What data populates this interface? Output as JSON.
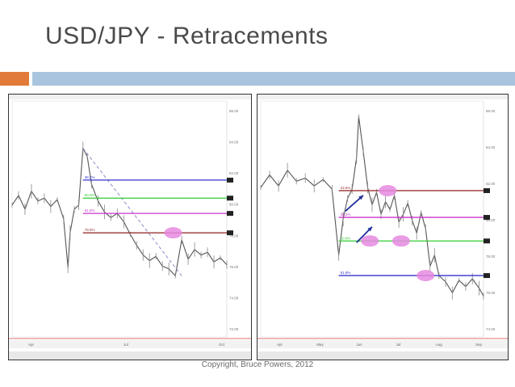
{
  "slide": {
    "title": "USD/JPY - Retracements",
    "copyright": "Copyright, Bruce Powers, 2012",
    "colors": {
      "title": "#4a4a4a",
      "accent_orange": "#e07b39",
      "accent_blue": "#a9c4de"
    }
  },
  "chart_data": [
    {
      "type": "line",
      "title": "",
      "xlabel": "",
      "ylabel": "",
      "x_tick_labels": [
        "Apr",
        "Jul",
        "Oct"
      ],
      "y_tick_labels": [
        "86.00",
        "84.00",
        "82.00",
        "80.00",
        "78.00",
        "76.00",
        "74.00",
        "72.00"
      ],
      "ylim": [
        71,
        88
      ],
      "series": [
        {
          "color": "#555555",
          "points": [
            [
              0.0,
              80.5
            ],
            [
              0.03,
              81.2
            ],
            [
              0.06,
              80.2
            ],
            [
              0.09,
              81.5
            ],
            [
              0.12,
              80.8
            ],
            [
              0.15,
              81.0
            ],
            [
              0.18,
              80.4
            ],
            [
              0.21,
              80.9
            ],
            [
              0.24,
              79.5
            ],
            [
              0.26,
              76.0
            ],
            [
              0.27,
              78.5
            ],
            [
              0.29,
              80.2
            ],
            [
              0.31,
              80.5
            ],
            [
              0.33,
              84.6
            ],
            [
              0.35,
              84.0
            ],
            [
              0.37,
              82.0
            ],
            [
              0.4,
              80.8
            ],
            [
              0.43,
              80.0
            ],
            [
              0.46,
              79.6
            ],
            [
              0.49,
              79.9
            ],
            [
              0.52,
              79.3
            ],
            [
              0.55,
              78.4
            ],
            [
              0.58,
              77.6
            ],
            [
              0.61,
              76.9
            ],
            [
              0.64,
              76.5
            ],
            [
              0.67,
              76.8
            ],
            [
              0.7,
              76.1
            ],
            [
              0.73,
              75.9
            ],
            [
              0.76,
              75.4
            ],
            [
              0.79,
              78.0
            ],
            [
              0.82,
              76.6
            ],
            [
              0.85,
              77.3
            ],
            [
              0.88,
              76.9
            ],
            [
              0.91,
              77.1
            ],
            [
              0.94,
              76.4
            ],
            [
              0.97,
              76.7
            ],
            [
              1.0,
              76.2
            ]
          ]
        }
      ],
      "trendline": {
        "from": [
          0.33,
          84.6
        ],
        "to": [
          0.79,
          75.4
        ],
        "color": "#8a8ac8"
      },
      "levels": [
        {
          "label": "38.2%",
          "value": 82.3,
          "color": "#3333cc"
        },
        {
          "label": "50.0%",
          "value": 81.0,
          "color": "#33cc33"
        },
        {
          "label": "61.8%",
          "value": 79.9,
          "color": "#cc33cc"
        },
        {
          "label": "78.6%",
          "value": 78.5,
          "color": "#993333"
        }
      ],
      "highlights": [
        {
          "x": 0.75,
          "y": 78.5,
          "color": "#e68ae0"
        }
      ],
      "arrows": []
    },
    {
      "type": "line",
      "title": "",
      "xlabel": "",
      "ylabel": "",
      "x_tick_labels": [
        "Apr",
        "May",
        "Jun",
        "Jul",
        "Aug",
        "Sep"
      ],
      "y_tick_labels": [
        "86.00",
        "84.00",
        "82.00",
        "80.00",
        "78.00",
        "76.00",
        "74.00"
      ],
      "ylim": [
        73,
        88
      ],
      "series": [
        {
          "color": "#555555",
          "points": [
            [
              0.0,
              82.5
            ],
            [
              0.04,
              83.3
            ],
            [
              0.08,
              82.6
            ],
            [
              0.12,
              83.6
            ],
            [
              0.16,
              82.9
            ],
            [
              0.2,
              83.1
            ],
            [
              0.24,
              82.6
            ],
            [
              0.28,
              83.0
            ],
            [
              0.32,
              82.4
            ],
            [
              0.35,
              78.2
            ],
            [
              0.37,
              80.5
            ],
            [
              0.39,
              81.8
            ],
            [
              0.41,
              82.4
            ],
            [
              0.43,
              84.4
            ],
            [
              0.44,
              87.0
            ],
            [
              0.46,
              84.8
            ],
            [
              0.48,
              82.5
            ],
            [
              0.5,
              81.4
            ],
            [
              0.52,
              82.2
            ],
            [
              0.54,
              80.8
            ],
            [
              0.56,
              81.6
            ],
            [
              0.58,
              81.1
            ],
            [
              0.6,
              82.0
            ],
            [
              0.62,
              80.3
            ],
            [
              0.64,
              80.8
            ],
            [
              0.66,
              81.5
            ],
            [
              0.68,
              80.4
            ],
            [
              0.7,
              79.6
            ],
            [
              0.72,
              80.9
            ],
            [
              0.74,
              79.9
            ],
            [
              0.76,
              77.5
            ],
            [
              0.78,
              78.2
            ],
            [
              0.8,
              76.9
            ],
            [
              0.83,
              76.5
            ],
            [
              0.86,
              75.8
            ],
            [
              0.89,
              76.6
            ],
            [
              0.92,
              76.2
            ],
            [
              0.95,
              76.7
            ],
            [
              0.98,
              76.1
            ],
            [
              1.0,
              75.6
            ]
          ]
        }
      ],
      "trendline": null,
      "levels": [
        {
          "label": "23.6%",
          "value": 82.3,
          "color": "#993333"
        },
        {
          "label": "38.2%",
          "value": 80.6,
          "color": "#cc33cc"
        },
        {
          "label": "50.0%",
          "value": 79.1,
          "color": "#33cc33"
        },
        {
          "label": "61.8%",
          "value": 76.9,
          "color": "#3333cc"
        }
      ],
      "highlights": [
        {
          "x": 0.57,
          "y": 82.3,
          "color": "#e68ae0"
        },
        {
          "x": 0.49,
          "y": 79.1,
          "color": "#e68ae0"
        },
        {
          "x": 0.63,
          "y": 79.1,
          "color": "#e68ae0"
        },
        {
          "x": 0.74,
          "y": 76.9,
          "color": "#e68ae0"
        }
      ],
      "arrows": [
        {
          "from": [
            0.38,
            81.0
          ],
          "to": [
            0.46,
            82.0
          ],
          "color": "#1f2f9a"
        },
        {
          "from": [
            0.43,
            79.0
          ],
          "to": [
            0.5,
            80.0
          ],
          "color": "#1f2f9a"
        }
      ]
    }
  ]
}
